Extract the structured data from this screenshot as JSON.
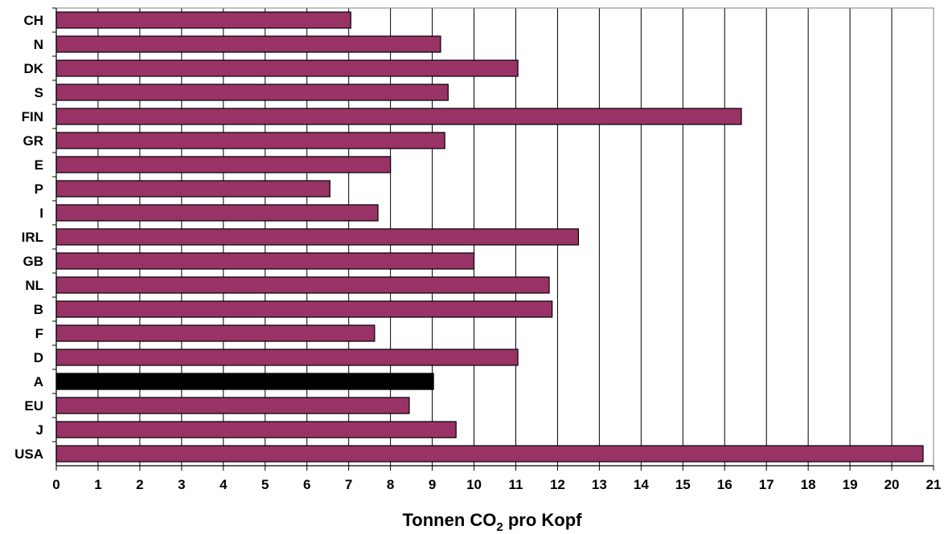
{
  "chart_data": {
    "type": "bar",
    "orientation": "horizontal",
    "categories": [
      "CH",
      "N",
      "DK",
      "S",
      "FIN",
      "GR",
      "E",
      "P",
      "I",
      "IRL",
      "GB",
      "NL",
      "B",
      "F",
      "D",
      "A",
      "EU",
      "J",
      "USA"
    ],
    "values": [
      7.05,
      9.2,
      11.05,
      9.38,
      16.4,
      9.3,
      8.0,
      6.55,
      7.7,
      12.5,
      10.0,
      11.8,
      11.87,
      7.62,
      11.05,
      9.03,
      8.45,
      9.57,
      20.75
    ],
    "highlight": {
      "category": "A",
      "color": "#000000"
    },
    "bar_color": "#993366",
    "xlim": [
      0,
      21
    ],
    "xticks": [
      "0",
      "1",
      "2",
      "3",
      "4",
      "5",
      "6",
      "7",
      "8",
      "9",
      "10",
      "11",
      "12",
      "13",
      "14",
      "15",
      "16",
      "17",
      "18",
      "19",
      "20",
      "21"
    ],
    "xlabel": "Tonnen CO",
    "xlabel_subscript": "2",
    "xlabel_suffix": " pro Kopf",
    "ylabel": "",
    "title": "",
    "grid": "vertical",
    "legend": "none"
  }
}
